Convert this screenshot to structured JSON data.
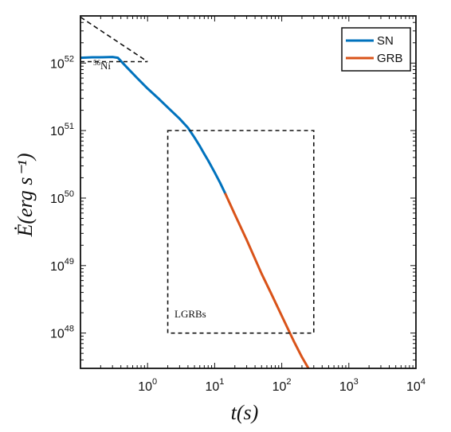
{
  "chart_data": {
    "type": "line",
    "xlabel": "t(s)",
    "ylabel": "Ė(erg s⁻¹)",
    "xscale": "log",
    "yscale": "log",
    "xlim": [
      0.1,
      10000
    ],
    "ylim": [
      3e+47,
      5e+52
    ],
    "grid": false,
    "legend_position": "top-right",
    "x_ticks": [
      {
        "base": "10",
        "exp": "0",
        "value": 1
      },
      {
        "base": "10",
        "exp": "1",
        "value": 10
      },
      {
        "base": "10",
        "exp": "2",
        "value": 100
      },
      {
        "base": "10",
        "exp": "3",
        "value": 1000
      },
      {
        "base": "10",
        "exp": "4",
        "value": 10000
      }
    ],
    "y_ticks": [
      {
        "base": "10",
        "exp": "48",
        "value": 1e+48
      },
      {
        "base": "10",
        "exp": "49",
        "value": 1e+49
      },
      {
        "base": "10",
        "exp": "50",
        "value": 1e+50
      },
      {
        "base": "10",
        "exp": "51",
        "value": 1e+51
      },
      {
        "base": "10",
        "exp": "52",
        "value": 1e+52
      }
    ],
    "series": [
      {
        "name": "SN",
        "color": "#0072BD",
        "x": [
          0.1,
          0.15,
          0.2,
          0.3,
          0.36,
          0.5,
          0.7,
          1.0,
          1.5,
          2.0,
          3.0,
          4.0,
          5.0,
          6.0,
          7.0,
          8.0,
          10.0,
          12.0,
          14.5
        ],
        "y": [
          1.2e+52,
          1.22e+52,
          1.22e+52,
          1.23e+52,
          1.2e+52,
          8.5e+51,
          6e+51,
          4.2e+51,
          2.9e+51,
          2.2e+51,
          1.5e+51,
          1.1e+51,
          7.9e+50,
          5.9e+50,
          4.5e+50,
          3.6e+50,
          2.4e+50,
          1.7e+50,
          1.15e+50
        ]
      },
      {
        "name": "GRB",
        "color": "#D95319",
        "x": [
          14.5,
          20,
          30,
          50,
          70,
          100,
          150,
          200,
          250
        ],
        "y": [
          1.15e+50,
          5.7e+49,
          2.4e+49,
          7.6e+48,
          3.8e+48,
          1.8e+48,
          7.7e+47,
          4.4e+47,
          3e+47
        ]
      }
    ],
    "annotations": [
      {
        "label": "Ni",
        "superscript": "56"
      },
      {
        "label": "LGRBs"
      }
    ],
    "reference_lines": {
      "ni_cap": {
        "x": [
          0.1,
          1.0
        ],
        "y": 1.05e+52
      },
      "ni_slope": {
        "x": [
          0.1,
          1.0
        ],
        "y": [
          4.8e+52,
          1.05e+52
        ]
      }
    },
    "lgrb_box": {
      "x": [
        2,
        300
      ],
      "y": [
        1e+48,
        1e+51
      ]
    }
  }
}
